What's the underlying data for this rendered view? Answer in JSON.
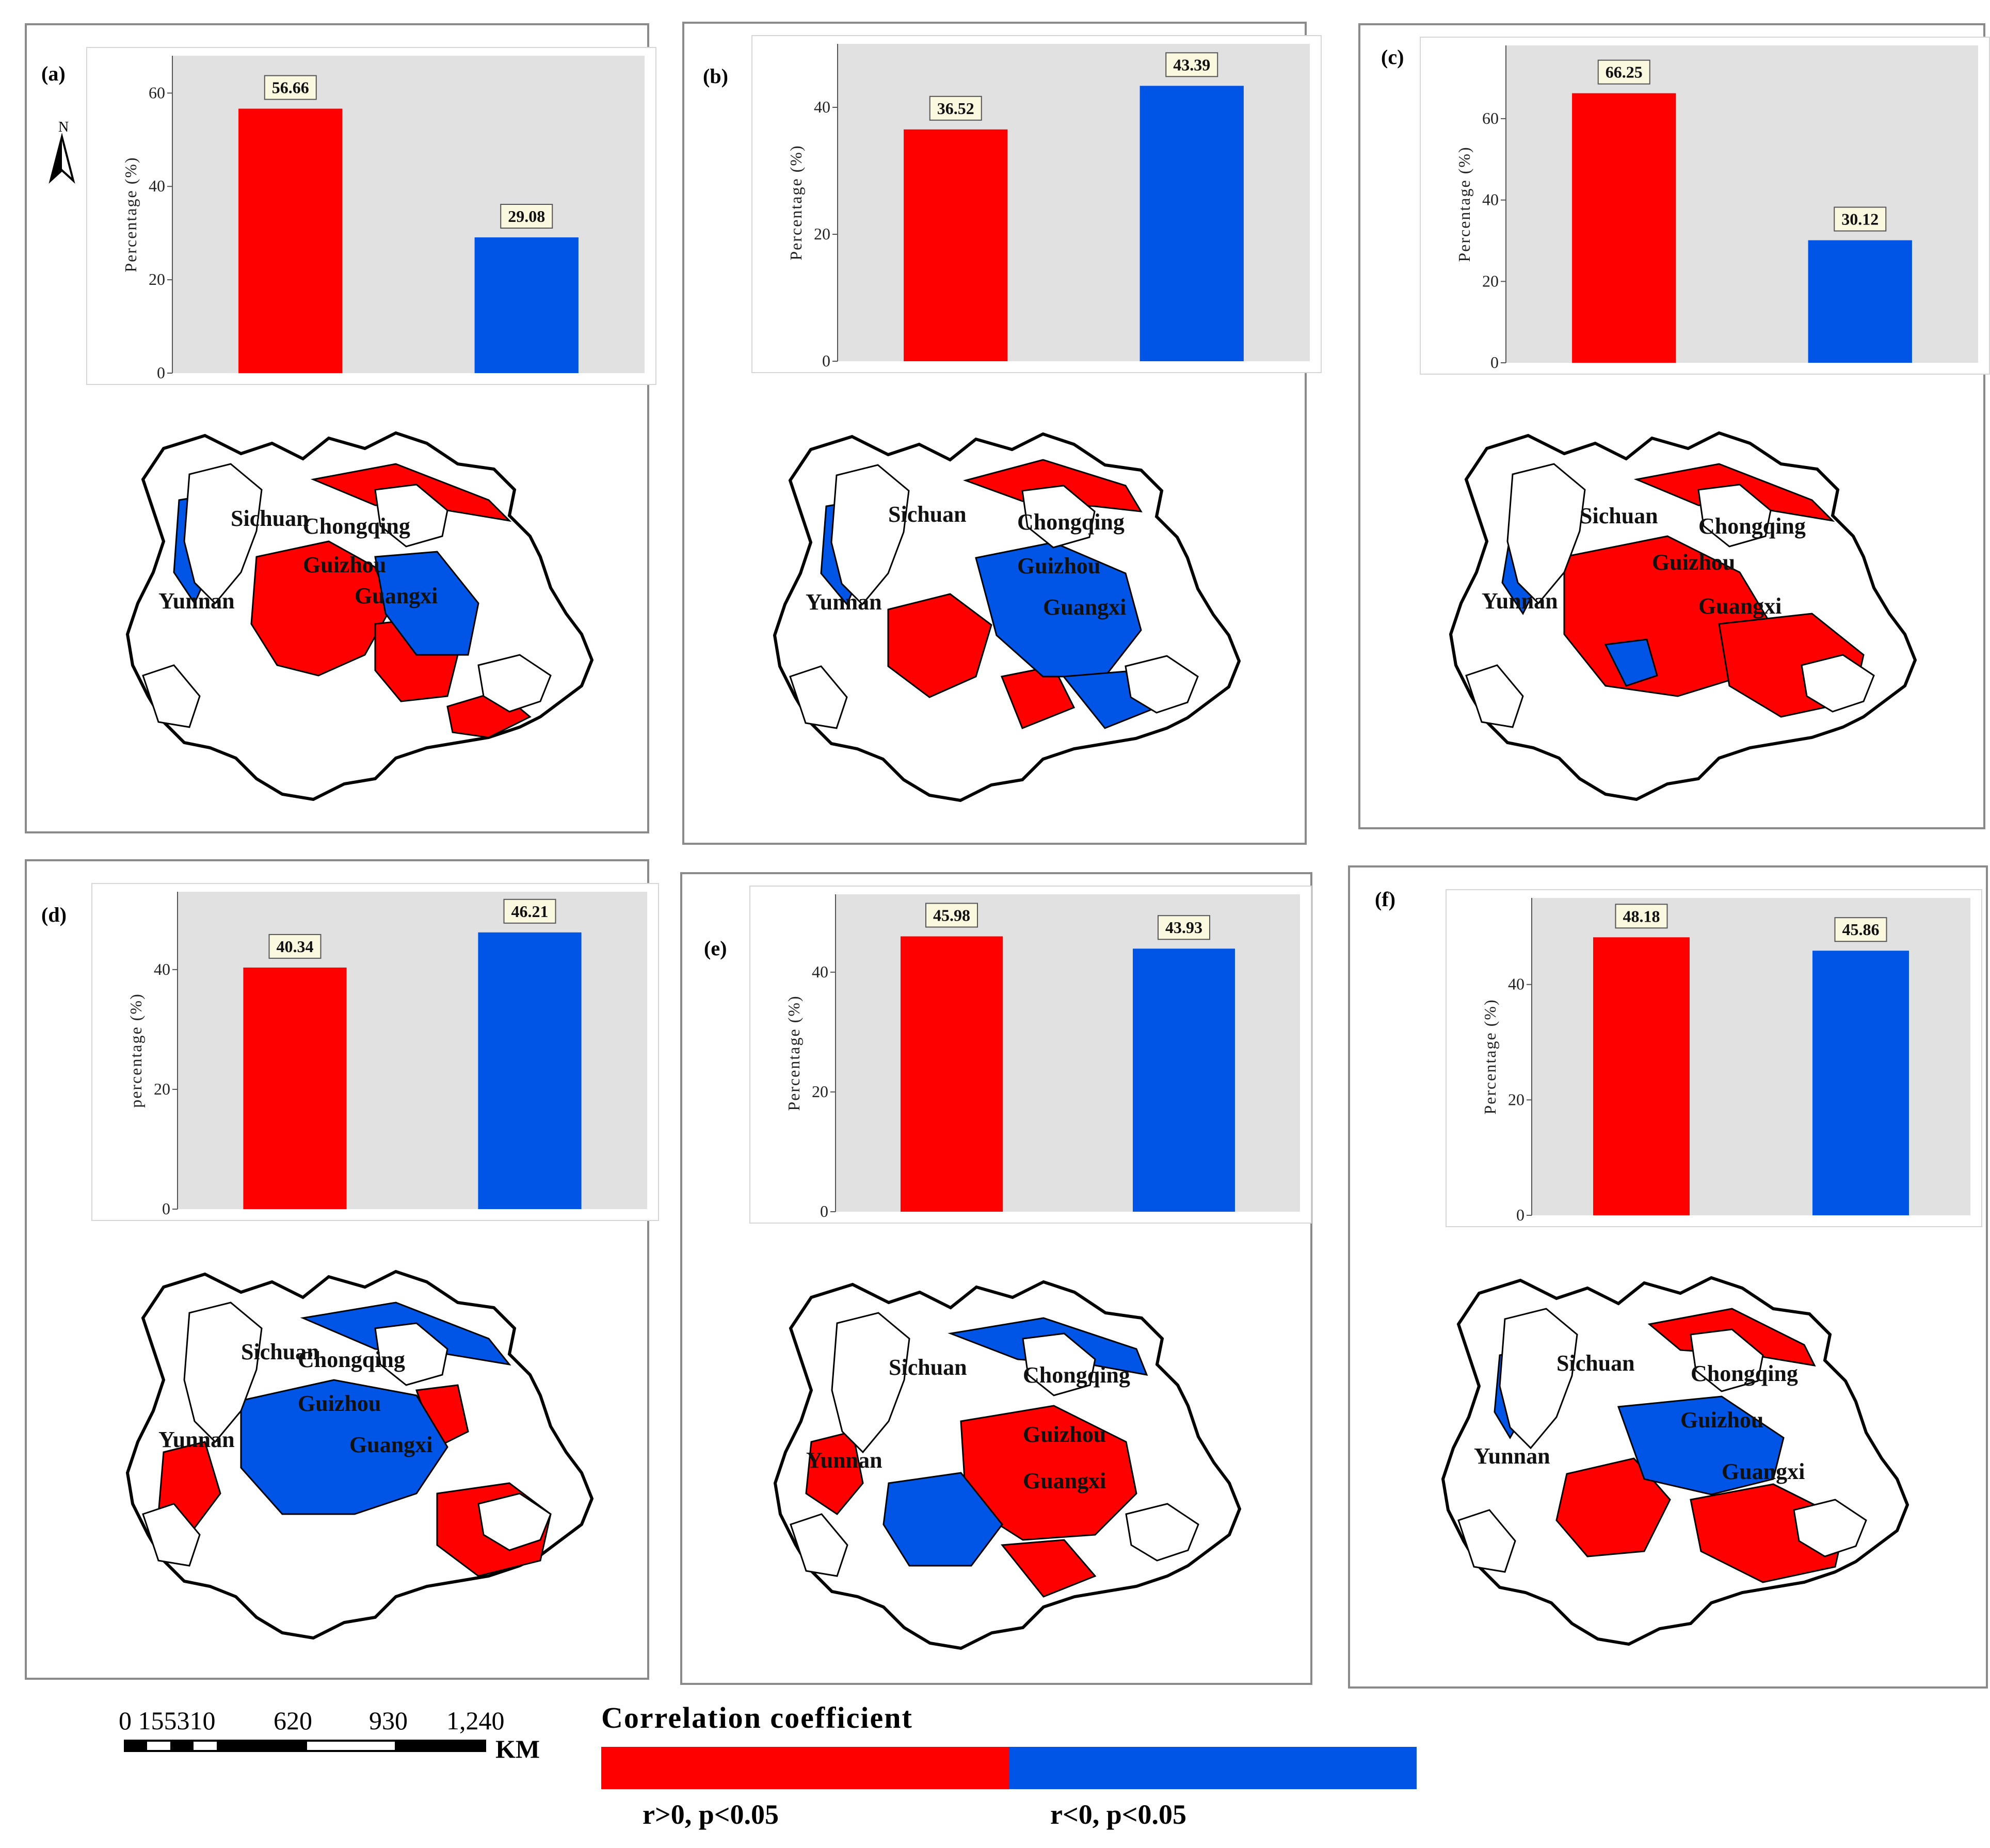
{
  "colors": {
    "positive": "#fe0000",
    "negative": "#0055e6",
    "plot_bg": "#e1e1e1",
    "label_box": "#fbf8e0"
  },
  "places": [
    "Sichuan",
    "Chongqing",
    "Guizhou",
    "Yunnan",
    "Guangxi"
  ],
  "north_label": "N",
  "panels": [
    {
      "label": "(a)",
      "ylabel": "Percentage (%)",
      "ylim": [
        0,
        68
      ],
      "ticks": [
        0,
        20,
        40,
        60
      ]
    },
    {
      "label": "(b)",
      "ylabel": "Percentage (%)",
      "ylim": [
        0,
        50
      ],
      "ticks": [
        0,
        20,
        40
      ]
    },
    {
      "label": "(c)",
      "ylabel": "Percentage (%)",
      "ylim": [
        0,
        78
      ],
      "ticks": [
        0,
        20,
        40,
        60
      ]
    },
    {
      "label": "(d)",
      "ylabel": "percentage (%)",
      "ylim": [
        0,
        53
      ],
      "ticks": [
        0,
        20,
        40
      ]
    },
    {
      "label": "(e)",
      "ylabel": "Percentage (%)",
      "ylim": [
        0,
        53
      ],
      "ticks": [
        0,
        20,
        40
      ]
    },
    {
      "label": "(f)",
      "ylabel": "Percentage (%)",
      "ylim": [
        0,
        55
      ],
      "ticks": [
        0,
        20,
        40
      ]
    }
  ],
  "chart_data": [
    {
      "type": "bar",
      "panel": "(a)",
      "categories": [
        "r>0, p<0.05",
        "r<0, p<0.05"
      ],
      "values": [
        56.66,
        29.08
      ],
      "value_labels": [
        "56.66",
        "29.08"
      ],
      "ylabel": "Percentage (%)",
      "ylim": [
        0,
        68
      ]
    },
    {
      "type": "bar",
      "panel": "(b)",
      "categories": [
        "r>0, p<0.05",
        "r<0, p<0.05"
      ],
      "values": [
        36.52,
        43.39
      ],
      "value_labels": [
        "36.52",
        "43.39"
      ],
      "ylabel": "Percentage (%)",
      "ylim": [
        0,
        50
      ]
    },
    {
      "type": "bar",
      "panel": "(c)",
      "categories": [
        "r>0, p<0.05",
        "r<0, p<0.05"
      ],
      "values": [
        66.25,
        30.12
      ],
      "value_labels": [
        "66.25",
        "30.12"
      ],
      "ylabel": "Percentage (%)",
      "ylim": [
        0,
        78
      ]
    },
    {
      "type": "bar",
      "panel": "(d)",
      "categories": [
        "r>0, p<0.05",
        "r<0, p<0.05"
      ],
      "values": [
        40.34,
        46.21
      ],
      "value_labels": [
        "40.34",
        "46.21"
      ],
      "ylabel": "percentage (%)",
      "ylim": [
        0,
        53
      ]
    },
    {
      "type": "bar",
      "panel": "(e)",
      "categories": [
        "r>0, p<0.05",
        "r<0, p<0.05"
      ],
      "values": [
        45.98,
        43.93
      ],
      "value_labels": [
        "45.98",
        "43.93"
      ],
      "ylabel": "Percentage (%)",
      "ylim": [
        0,
        53
      ]
    },
    {
      "type": "bar",
      "panel": "(f)",
      "categories": [
        "r>0, p<0.05",
        "r<0, p<0.05"
      ],
      "values": [
        48.18,
        45.86
      ],
      "value_labels": [
        "48.18",
        "45.86"
      ],
      "ylabel": "Percentage (%)",
      "ylim": [
        0,
        55
      ]
    }
  ],
  "scale_bar": {
    "labels": [
      "0 155310",
      "620",
      "930",
      "1,240"
    ],
    "unit": "KM"
  },
  "legend": {
    "title": "Correlation coefficient",
    "positive_label": "r>0, p<0.05",
    "negative_label": "r<0, p<0.05"
  }
}
